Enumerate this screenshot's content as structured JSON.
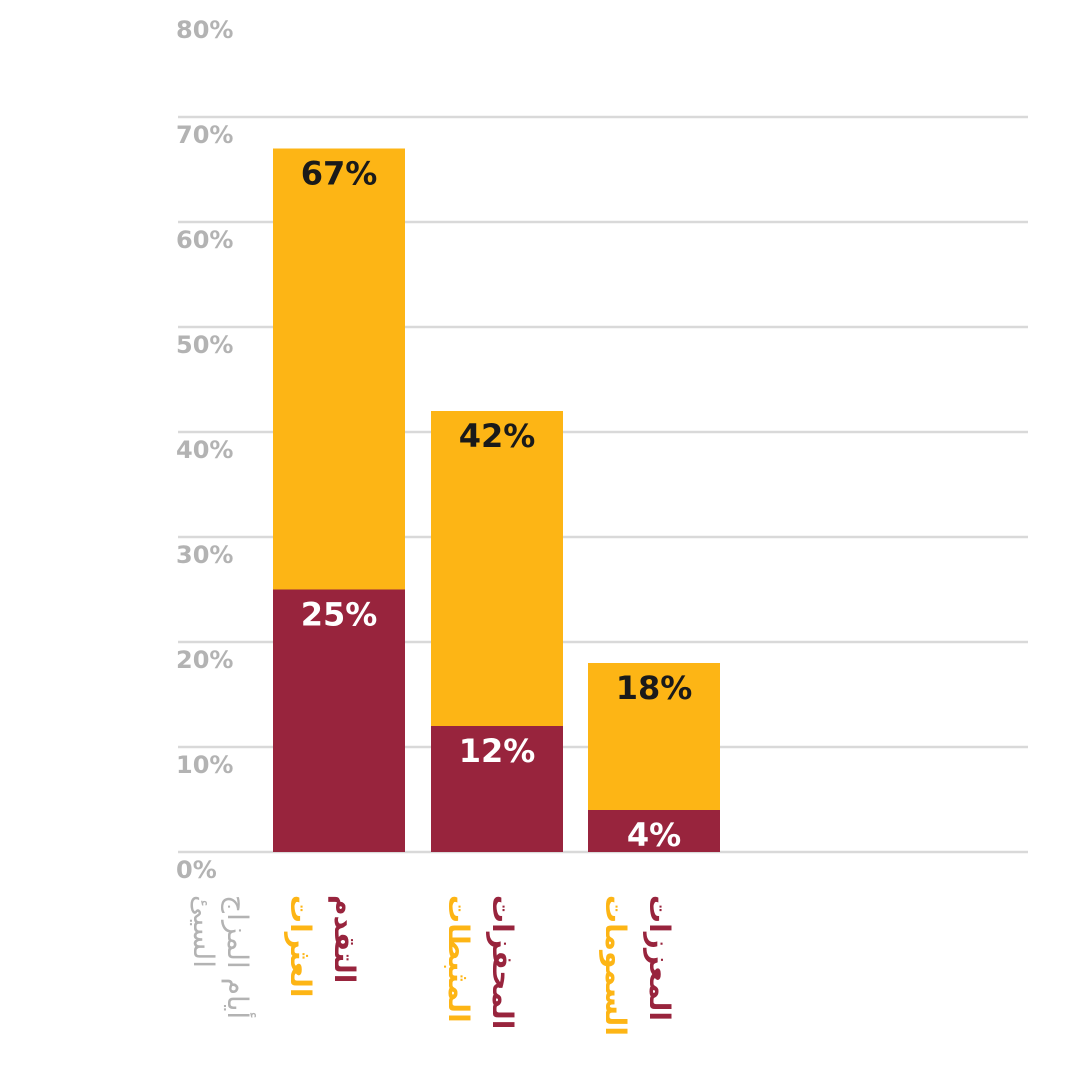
{
  "colors": {
    "total": "#fdb515",
    "part": "#98243d",
    "grid": "#d9d9d9",
    "axis_text": "#b3b3b3",
    "label_dark": "#1a1a1a",
    "label_light": "#ffffff"
  },
  "chart_data": {
    "type": "bar",
    "stacked_overlay": true,
    "ylim": [
      0,
      80
    ],
    "yticks": [
      0,
      10,
      20,
      30,
      40,
      50,
      60,
      70,
      80
    ],
    "ytick_labels": [
      "0%",
      "10%",
      "20%",
      "30%",
      "40%",
      "50%",
      "60%",
      "70%",
      "80%"
    ],
    "ylabel": [
      "أيام المزاج",
      "السيئ"
    ],
    "grid": true,
    "categories": [
      {
        "part_label": "التقدم",
        "total_label": "العثرات"
      },
      {
        "part_label": "المحفزات",
        "total_label": "المثبطات"
      },
      {
        "part_label": "المعززات",
        "total_label": "السمومات"
      }
    ],
    "series": [
      {
        "values": [
          67,
          42,
          18
        ],
        "labels": [
          "67%",
          "42%",
          "18%"
        ]
      },
      {
        "values": [
          25,
          12,
          4
        ],
        "labels": [
          "25%",
          "12%",
          "4%"
        ]
      }
    ]
  }
}
